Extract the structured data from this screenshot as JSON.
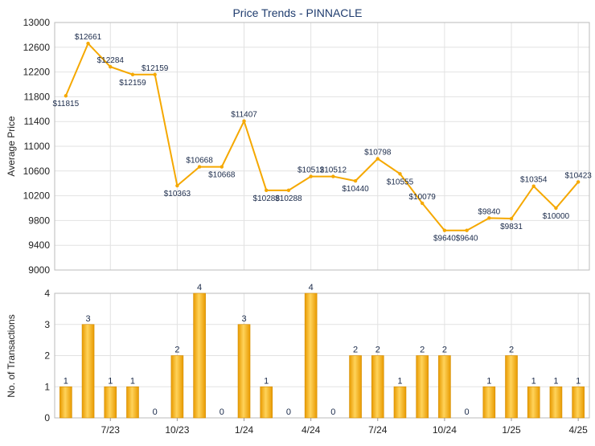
{
  "chart_data": [
    {
      "type": "line",
      "title": "Price Trends - PINNACLE",
      "ylabel": "Average Price",
      "ylim": [
        9000,
        13000
      ],
      "yticks": [
        9000,
        9400,
        9800,
        10200,
        10600,
        11000,
        11400,
        11800,
        12200,
        12600,
        13000
      ],
      "grid": true,
      "color": "#f5a800",
      "label_prefix": "$",
      "x_ticks": [
        {
          "label": "7/23",
          "index": 2
        },
        {
          "label": "10/23",
          "index": 5
        },
        {
          "label": "1/24",
          "index": 8
        },
        {
          "label": "4/24",
          "index": 11
        },
        {
          "label": "7/24",
          "index": 14
        },
        {
          "label": "10/24",
          "index": 17
        },
        {
          "label": "1/25",
          "index": 20
        },
        {
          "label": "4/25",
          "index": 23
        }
      ],
      "values": [
        11815,
        12661,
        12284,
        12159,
        12159,
        10363,
        10668,
        10668,
        11407,
        10288,
        10288,
        10512,
        10512,
        10440,
        10798,
        10555,
        10079,
        9640,
        9640,
        9840,
        9831,
        10354,
        10000,
        10423
      ]
    },
    {
      "type": "bar",
      "ylabel": "No. of Transactions",
      "ylim": [
        0,
        4
      ],
      "yticks": [
        0,
        1,
        2,
        3,
        4
      ],
      "grid": true,
      "color": "#f5a800",
      "x_ticks": [
        {
          "label": "7/23",
          "index": 2
        },
        {
          "label": "10/23",
          "index": 5
        },
        {
          "label": "1/24",
          "index": 8
        },
        {
          "label": "4/24",
          "index": 11
        },
        {
          "label": "7/24",
          "index": 14
        },
        {
          "label": "10/24",
          "index": 17
        },
        {
          "label": "1/25",
          "index": 20
        },
        {
          "label": "4/25",
          "index": 23
        }
      ],
      "values": [
        1,
        3,
        1,
        1,
        0,
        2,
        4,
        0,
        3,
        1,
        0,
        4,
        0,
        2,
        2,
        1,
        2,
        2,
        0,
        1,
        2,
        1,
        1,
        1
      ]
    }
  ]
}
